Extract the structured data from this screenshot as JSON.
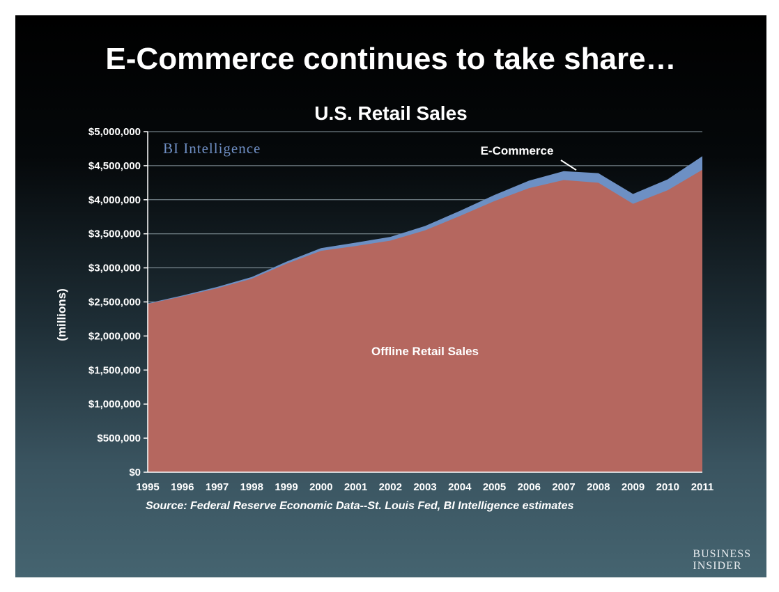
{
  "slide": {
    "title": "E-Commerce continues to take share…",
    "source": "Source: Federal Reserve Economic Data--St. Louis Fed, BI Intelligence estimates",
    "logo_line1": "Business",
    "logo_line2": "Insider",
    "brand": "BI Intelligence"
  },
  "colors": {
    "offline": "#b5675f",
    "ecommerce": "#6d90c4",
    "gridline": "#8a9aa2",
    "axis": "#ffffff"
  },
  "chart_data": {
    "type": "area",
    "stacked": true,
    "title": "U.S. Retail Sales",
    "xlabel": "",
    "ylabel": "(millions)",
    "ylim": [
      0,
      5000000
    ],
    "yticks": [
      0,
      500000,
      1000000,
      1500000,
      2000000,
      2500000,
      3000000,
      3500000,
      4000000,
      4500000,
      5000000
    ],
    "ytick_labels": [
      "$0",
      "$500,000",
      "$1,000,000",
      "$1,500,000",
      "$2,000,000",
      "$2,500,000",
      "$3,000,000",
      "$3,500,000",
      "$4,000,000",
      "$4,500,000",
      "$5,000,000"
    ],
    "x": [
      "1995",
      "1996",
      "1997",
      "1998",
      "1999",
      "2000",
      "2001",
      "2002",
      "2003",
      "2004",
      "2005",
      "2006",
      "2007",
      "2008",
      "2009",
      "2010",
      "2011"
    ],
    "grid": true,
    "series": [
      {
        "name": "Offline Retail Sales",
        "color": "#b5675f",
        "values": [
          2470000,
          2580000,
          2700000,
          2840000,
          3060000,
          3250000,
          3320000,
          3400000,
          3550000,
          3760000,
          3980000,
          4170000,
          4290000,
          4250000,
          3940000,
          4140000,
          4440000
        ]
      },
      {
        "name": "E-Commerce",
        "color": "#6d90c4",
        "values": [
          10000,
          15000,
          20000,
          25000,
          30000,
          40000,
          50000,
          55000,
          65000,
          75000,
          90000,
          110000,
          130000,
          140000,
          145000,
          160000,
          200000
        ]
      }
    ]
  }
}
